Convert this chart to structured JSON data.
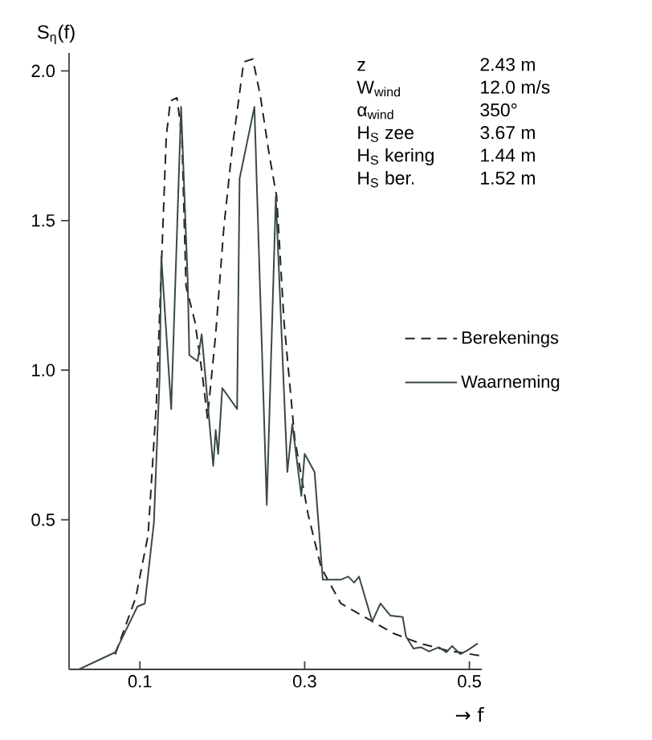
{
  "chart_data": {
    "type": "line",
    "xlabel": "→ f",
    "ylabel": "S$_{η}$(f)",
    "xlim": [
      0.014,
      0.515
    ],
    "ylim": [
      0,
      2.06
    ],
    "xticks": [
      0.1,
      0.3,
      0.5
    ],
    "yticks": [
      0.5,
      {
        "value": 1.0,
        "label": "1.0"
      },
      1.5,
      {
        "value": 2.0,
        "label": "2.0"
      }
    ],
    "legend": "right",
    "annotations": [
      "z",
      "2.43 m",
      "W$_{wind}$",
      "12.0 m/s",
      "α$_{wind}$",
      "350°",
      "H$_{S}$ zee",
      "3.67 m",
      "H$_{S}$ kering",
      "1.44 m",
      "H$_{S}$ ber.",
      "1.52 m"
    ],
    "series": [
      {
        "name": "Berekenings",
        "color": "#222222",
        "line_style": "dashed",
        "x": [
          0.07,
          0.095,
          0.11,
          0.12,
          0.126,
          0.132,
          0.137,
          0.145,
          0.151,
          0.156,
          0.167,
          0.176,
          0.182,
          0.192,
          0.202,
          0.212,
          0.226,
          0.237,
          0.246,
          0.257,
          0.266,
          0.275,
          0.288,
          0.304,
          0.32,
          0.344,
          0.376,
          0.408,
          0.44,
          0.472,
          0.512
        ],
        "values": [
          0.05,
          0.24,
          0.45,
          0.89,
          1.34,
          1.78,
          1.9,
          1.91,
          1.78,
          1.28,
          1.16,
          0.98,
          0.84,
          1.12,
          1.48,
          1.74,
          2.03,
          2.04,
          1.92,
          1.72,
          1.58,
          1.16,
          0.77,
          0.52,
          0.34,
          0.22,
          0.17,
          0.12,
          0.087,
          0.064,
          0.046
        ]
      },
      {
        "name": "Waarneming",
        "color": "#3a4a3f",
        "line_style": "solid",
        "x": [
          0.026,
          0.07,
          0.097,
          0.106,
          0.117,
          0.124,
          0.126,
          0.138,
          0.15,
          0.158,
          0.16,
          0.17,
          0.175,
          0.189,
          0.192,
          0.195,
          0.2,
          0.218,
          0.221,
          0.239,
          0.254,
          0.265,
          0.279,
          0.285,
          0.296,
          0.3,
          0.312,
          0.322,
          0.344,
          0.353,
          0.36,
          0.366,
          0.382,
          0.392,
          0.404,
          0.419,
          0.423,
          0.432,
          0.441,
          0.451,
          0.463,
          0.472,
          0.479,
          0.489,
          0.498,
          0.51
        ],
        "values": [
          0,
          0.057,
          0.21,
          0.22,
          0.49,
          0.98,
          1.38,
          0.87,
          1.88,
          1.3,
          1.05,
          1.03,
          1.12,
          0.68,
          0.8,
          0.72,
          0.94,
          0.87,
          1.64,
          1.88,
          0.55,
          1.58,
          0.66,
          0.82,
          0.58,
          0.72,
          0.66,
          0.3,
          0.3,
          0.31,
          0.29,
          0.31,
          0.16,
          0.22,
          0.18,
          0.175,
          0.11,
          0.07,
          0.074,
          0.06,
          0.074,
          0.057,
          0.078,
          0.051,
          0.064,
          0.087
        ]
      }
    ]
  }
}
